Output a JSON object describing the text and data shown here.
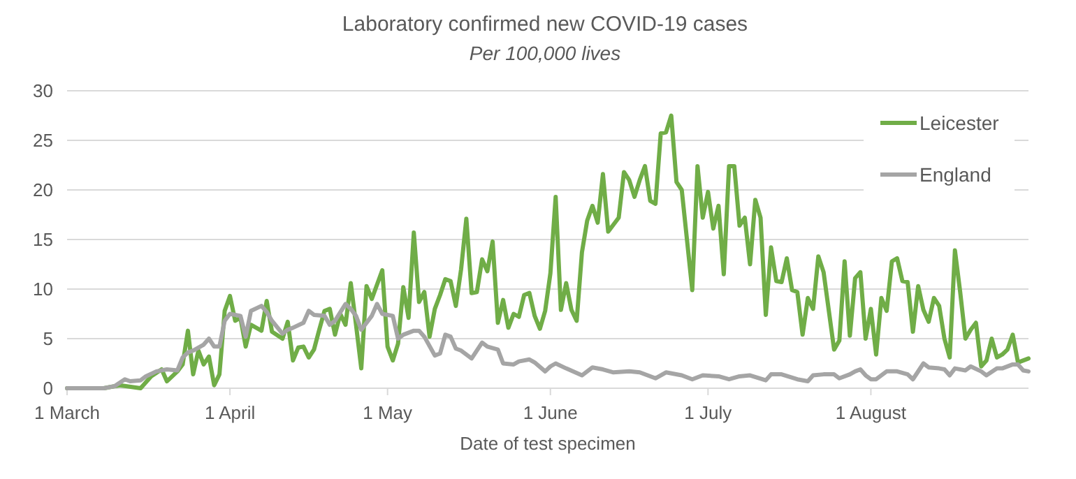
{
  "chart_data": {
    "type": "line",
    "title": "Laboratory confirmed new COVID-19 cases",
    "subtitle": "Per 100,000 lives",
    "xlabel": "Date of test specimen",
    "xlim": [
      "--03-01",
      "--08-31"
    ],
    "xticks": [
      {
        "value": "--03-01",
        "label": "1 March"
      },
      {
        "value": "--04-01",
        "label": "1 April"
      },
      {
        "value": "--05-01",
        "label": "1 May"
      },
      {
        "value": "--06-01",
        "label": "1 June"
      },
      {
        "value": "--07-01",
        "label": "1 July"
      },
      {
        "value": "--08-01",
        "label": "1 August"
      }
    ],
    "ylim": [
      0,
      30
    ],
    "yticks": [
      0,
      5,
      10,
      15,
      20,
      25,
      30
    ],
    "grid": "y",
    "legend": "top right",
    "marker": "none",
    "line_style": "solid",
    "series": [
      {
        "name": "Leicester",
        "color": "#70ad47",
        "x": [
          "--03-01",
          "--03-08",
          "--03-11",
          "--03-15",
          "--03-17",
          "--03-19",
          "--03-20",
          "--03-22",
          "--03-23",
          "--03-24",
          "--03-25",
          "--03-26",
          "--03-27",
          "--03-28",
          "--03-29",
          "--03-30",
          "--03-31",
          "--04-01",
          "--04-02",
          "--04-03",
          "--04-04",
          "--04-05",
          "--04-06",
          "--04-07",
          "--04-08",
          "--04-09",
          "--04-11",
          "--04-12",
          "--04-13",
          "--04-14",
          "--04-15",
          "--04-16",
          "--04-17",
          "--04-18",
          "--04-19",
          "--04-20",
          "--04-21",
          "--04-22",
          "--04-23",
          "--04-24",
          "--04-25",
          "--04-26",
          "--04-27",
          "--04-28",
          "--04-30",
          "--05-01",
          "--05-02",
          "--05-03",
          "--05-04",
          "--05-05",
          "--05-06",
          "--05-07",
          "--05-08",
          "--05-09",
          "--05-10",
          "--05-11",
          "--05-12",
          "--05-13",
          "--05-14",
          "--05-15",
          "--05-16",
          "--05-17",
          "--05-18",
          "--05-19",
          "--05-20",
          "--05-21",
          "--05-22",
          "--05-23",
          "--05-24",
          "--05-25",
          "--05-26",
          "--05-27",
          "--05-28",
          "--05-29",
          "--05-30",
          "--05-31",
          "--06-01",
          "--06-02",
          "--06-03",
          "--06-04",
          "--06-05",
          "--06-06",
          "--06-07",
          "--06-08",
          "--06-09",
          "--06-10",
          "--06-11",
          "--06-12",
          "--06-13",
          "--06-14",
          "--06-15",
          "--06-16",
          "--06-17",
          "--06-18",
          "--06-19",
          "--06-20",
          "--06-21",
          "--06-22",
          "--06-23",
          "--06-24",
          "--06-25",
          "--06-26",
          "--06-28",
          "--06-29",
          "--06-30",
          "--07-01",
          "--07-02",
          "--07-03",
          "--07-04",
          "--07-05",
          "--07-06",
          "--07-07",
          "--07-08",
          "--07-09",
          "--07-10",
          "--07-11",
          "--07-12",
          "--07-13",
          "--07-14",
          "--07-15",
          "--07-16",
          "--07-17",
          "--07-18",
          "--07-19",
          "--07-20",
          "--07-21",
          "--07-22",
          "--07-23",
          "--07-24",
          "--07-25",
          "--07-26",
          "--07-27",
          "--07-28",
          "--07-29",
          "--07-30",
          "--07-31",
          "--08-01",
          "--08-02",
          "--08-03",
          "--08-04",
          "--08-05",
          "--08-06",
          "--08-07",
          "--08-08",
          "--08-09",
          "--08-10",
          "--08-11",
          "--08-12",
          "--08-13",
          "--08-14",
          "--08-15",
          "--08-16",
          "--08-17",
          "--08-18",
          "--08-19",
          "--08-20",
          "--08-21",
          "--08-22",
          "--08-23",
          "--08-24",
          "--08-25",
          "--08-26",
          "--08-27",
          "--08-28",
          "--08-29",
          "--08-31"
        ],
        "values": [
          0,
          0,
          0.3,
          0,
          1.2,
          1.9,
          0.7,
          1.7,
          2.4,
          5.8,
          1.4,
          3.8,
          2.4,
          3.2,
          0.3,
          1.4,
          7.8,
          9.3,
          6.8,
          7.1,
          4.2,
          6.4,
          6.1,
          5.8,
          8.8,
          5.7,
          5.0,
          6.7,
          2.8,
          4.1,
          4.2,
          3.1,
          3.9,
          5.9,
          7.8,
          8.0,
          5.4,
          7.5,
          6.4,
          10.6,
          6.4,
          2.0,
          10.3,
          9.0,
          11.9,
          4.2,
          2.8,
          4.5,
          10.2,
          7.1,
          15.7,
          8.7,
          9.7,
          5.2,
          8.0,
          9.4,
          11.0,
          10.8,
          8.3,
          12.0,
          17.1,
          9.6,
          9.7,
          13.0,
          11.8,
          14.8,
          6.6,
          8.9,
          6.1,
          7.5,
          7.2,
          9.4,
          9.6,
          7.3,
          6.0,
          7.8,
          11.6,
          19.3,
          7.9,
          10.6,
          7.9,
          6.8,
          13.7,
          16.9,
          18.4,
          16.7,
          21.6,
          15.8,
          16.5,
          17.2,
          21.8,
          21.0,
          19.3,
          21.0,
          22.4,
          18.9,
          18.6,
          25.7,
          25.8,
          27.5,
          20.8,
          20.0,
          9.9,
          22.4,
          17.2,
          19.8,
          16.1,
          18.4,
          11.5,
          22.4,
          22.4,
          16.4,
          17.2,
          12.5,
          19.0,
          17.2,
          7.4,
          14.2,
          10.8,
          10.7,
          13.1,
          9.9,
          9.7,
          5.4,
          9.1,
          8.0,
          13.3,
          11.7,
          7.8,
          3.9,
          4.8,
          12.8,
          5.3,
          11.1,
          11.7,
          5.0,
          8.0,
          3.4,
          9.1,
          7.8,
          12.8,
          13.1,
          10.8,
          10.7,
          5.7,
          10.3,
          7.9,
          6.7,
          9.1,
          8.3,
          5.0,
          3.1,
          13.9,
          9.7,
          5.0,
          5.9,
          6.6,
          2.2,
          2.8,
          5.0,
          3.1,
          3.4,
          3.9,
          5.4,
          2.6,
          3.0
        ]
      },
      {
        "name": "England",
        "color": "#a5a5a5",
        "x": [
          "--03-01",
          "--03-08",
          "--03-10",
          "--03-12",
          "--03-13",
          "--03-15",
          "--03-16",
          "--03-18",
          "--03-20",
          "--03-22",
          "--03-23",
          "--03-24",
          "--03-25",
          "--03-27",
          "--03-28",
          "--03-29",
          "--03-30",
          "--03-31",
          "--04-01",
          "--04-03",
          "--04-04",
          "--04-05",
          "--04-07",
          "--04-08",
          "--04-09",
          "--04-11",
          "--04-12",
          "--04-13",
          "--04-15",
          "--04-16",
          "--04-17",
          "--04-19",
          "--04-20",
          "--04-21",
          "--04-23",
          "--04-24",
          "--04-25",
          "--04-26",
          "--04-28",
          "--04-29",
          "--04-30",
          "--05-02",
          "--05-03",
          "--05-04",
          "--05-06",
          "--05-07",
          "--05-08",
          "--05-10",
          "--05-11",
          "--05-12",
          "--05-13",
          "--05-14",
          "--05-15",
          "--05-17",
          "--05-19",
          "--05-20",
          "--05-22",
          "--05-23",
          "--05-25",
          "--05-26",
          "--05-28",
          "--05-29",
          "--05-31",
          "--06-01",
          "--06-02",
          "--06-04",
          "--06-07",
          "--06-09",
          "--06-11",
          "--06-13",
          "--06-16",
          "--06-18",
          "--06-21",
          "--06-23",
          "--06-26",
          "--06-28",
          "--06-30",
          "--07-03",
          "--07-05",
          "--07-07",
          "--07-09",
          "--07-12",
          "--07-13",
          "--07-15",
          "--07-18",
          "--07-20",
          "--07-21",
          "--07-23",
          "--07-25",
          "--07-26",
          "--07-28",
          "--07-29",
          "--07-30",
          "--07-31",
          "--08-01",
          "--08-02",
          "--08-04",
          "--08-06",
          "--08-08",
          "--08-09",
          "--08-11",
          "--08-12",
          "--08-14",
          "--08-15",
          "--08-16",
          "--08-17",
          "--08-19",
          "--08-20",
          "--08-22",
          "--08-23",
          "--08-25",
          "--08-26",
          "--08-28",
          "--08-29",
          "--08-30",
          "--08-31"
        ],
        "values": [
          0,
          0,
          0.2,
          0.9,
          0.7,
          0.8,
          1.2,
          1.7,
          1.9,
          1.8,
          3.1,
          3.6,
          3.8,
          4.4,
          5.0,
          4.2,
          4.2,
          6.8,
          7.5,
          7.3,
          5.2,
          7.8,
          8.3,
          7.7,
          6.8,
          5.5,
          5.9,
          6.1,
          6.6,
          7.8,
          7.4,
          7.3,
          6.4,
          6.8,
          8.5,
          8.0,
          7.3,
          5.9,
          7.3,
          8.5,
          7.5,
          7.3,
          5.0,
          5.4,
          5.8,
          5.8,
          5.2,
          3.3,
          3.5,
          5.4,
          5.2,
          4.0,
          3.8,
          3.0,
          4.6,
          4.2,
          3.9,
          2.5,
          2.4,
          2.7,
          2.9,
          2.6,
          1.7,
          2.2,
          2.5,
          2.0,
          1.3,
          2.1,
          1.9,
          1.6,
          1.7,
          1.6,
          1.0,
          1.6,
          1.3,
          0.9,
          1.3,
          1.2,
          0.9,
          1.2,
          1.3,
          0.8,
          1.4,
          1.4,
          0.9,
          0.7,
          1.3,
          1.4,
          1.4,
          1.0,
          1.4,
          1.7,
          1.9,
          1.3,
          0.9,
          0.9,
          1.7,
          1.7,
          1.4,
          0.9,
          2.5,
          2.1,
          2.0,
          1.9,
          1.3,
          2.0,
          1.8,
          2.2,
          1.7,
          1.3,
          2.0,
          2.0,
          2.4,
          2.4,
          1.8,
          1.7
        ]
      }
    ]
  }
}
